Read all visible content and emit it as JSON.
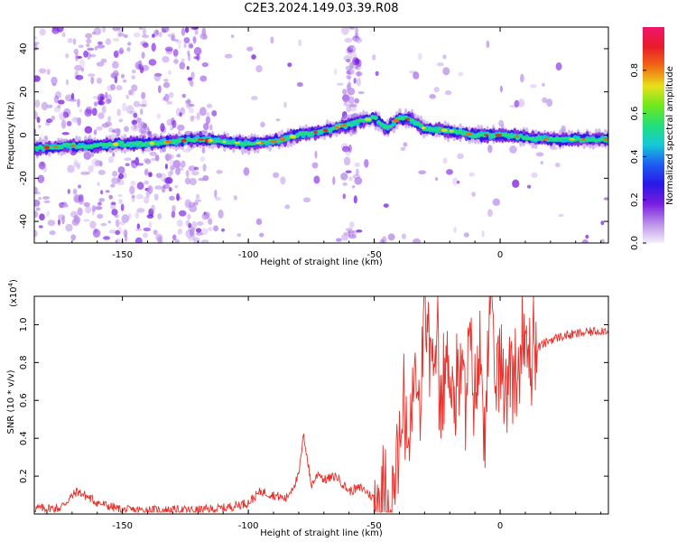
{
  "title": "C2E3.2024.149.03.39.R08",
  "colors": {
    "snr_line": "#e8302a",
    "axis": "#000000",
    "colormap": [
      "#f4f0fb",
      "#b98ee8",
      "#7a1de0",
      "#2a18e6",
      "#1e5cf0",
      "#15c8d8",
      "#22e07a",
      "#6ee81c",
      "#e8e01c",
      "#f06a14",
      "#e81c2a",
      "#f0146c"
    ]
  },
  "chart_data": [
    {
      "type": "heatmap",
      "title": "C2E3.2024.149.03.39.R08",
      "xlabel": "Height of straight line (km)",
      "ylabel": "Frequency (Hz)",
      "xlim": [
        -185,
        43
      ],
      "ylim": [
        -50,
        50
      ],
      "xticks": [
        -150,
        -100,
        -50,
        0
      ],
      "yticks": [
        -40,
        -20,
        0,
        20,
        40
      ],
      "colorbar": {
        "label": "Normalized spectral amplitude",
        "range": [
          0,
          1
        ],
        "ticks": [
          0.0,
          0.2,
          0.4,
          0.6,
          0.8
        ]
      },
      "ridge": {
        "x": [
          -185,
          -170,
          -160,
          -150,
          -140,
          -130,
          -120,
          -110,
          -100,
          -90,
          -80,
          -70,
          -60,
          -50,
          -45,
          -40,
          -35,
          -30,
          -20,
          -10,
          0,
          10,
          20,
          30,
          43
        ],
        "frequency": [
          -6,
          -5,
          -5,
          -4,
          -4,
          -3,
          -2,
          -3,
          -4,
          -3,
          0,
          2,
          5,
          8,
          3,
          8,
          7,
          3,
          2,
          0,
          0,
          -1,
          -2,
          -2,
          -2
        ]
      },
      "grid": false
    },
    {
      "type": "line",
      "xlabel": "Height of straight line (km)",
      "ylabel": "SNR (10 * v/v)",
      "y_multiplier_label": "(x10",
      "y_multiplier_exp": "4",
      "xlim": [
        -185,
        43
      ],
      "ylim": [
        0,
        1.15
      ],
      "xticks": [
        -150,
        -100,
        -50,
        0
      ],
      "yticks": [
        0.2,
        0.4,
        0.6,
        0.8,
        1.0
      ],
      "series": [
        {
          "x": [
            -185,
            -175,
            -168,
            -165,
            -160,
            -150,
            -140,
            -130,
            -120,
            -110,
            -100,
            -95,
            -90,
            -85,
            -80,
            -78,
            -75,
            -72,
            -70,
            -65,
            -60,
            -55,
            -50,
            -45,
            -42,
            -40,
            -38,
            -36,
            -34,
            -32,
            -30,
            -28,
            -26,
            -25,
            -24,
            -22,
            -20,
            -18,
            -16,
            -14,
            -12,
            -10,
            -8,
            -6,
            -4,
            -2,
            0,
            2,
            4,
            6,
            8,
            10,
            12,
            15,
            20,
            25,
            30,
            35,
            40,
            43
          ],
          "values": [
            0.03,
            0.03,
            0.12,
            0.1,
            0.06,
            0.02,
            0.02,
            0.02,
            0.02,
            0.03,
            0.06,
            0.12,
            0.1,
            0.08,
            0.2,
            0.42,
            0.15,
            0.22,
            0.18,
            0.2,
            0.12,
            0.14,
            0.08,
            0.05,
            0.12,
            0.35,
            0.55,
            0.35,
            0.75,
            0.5,
            1.1,
            0.9,
            0.6,
            1.15,
            0.45,
            0.72,
            0.85,
            0.55,
            0.78,
            0.62,
            0.9,
            0.65,
            0.8,
            0.55,
            1.05,
            0.7,
            0.85,
            0.6,
            0.9,
            0.7,
            0.82,
            0.88,
            0.85,
            0.88,
            0.92,
            0.94,
            0.95,
            0.96,
            0.97,
            0.97
          ]
        }
      ],
      "grid": false
    }
  ]
}
